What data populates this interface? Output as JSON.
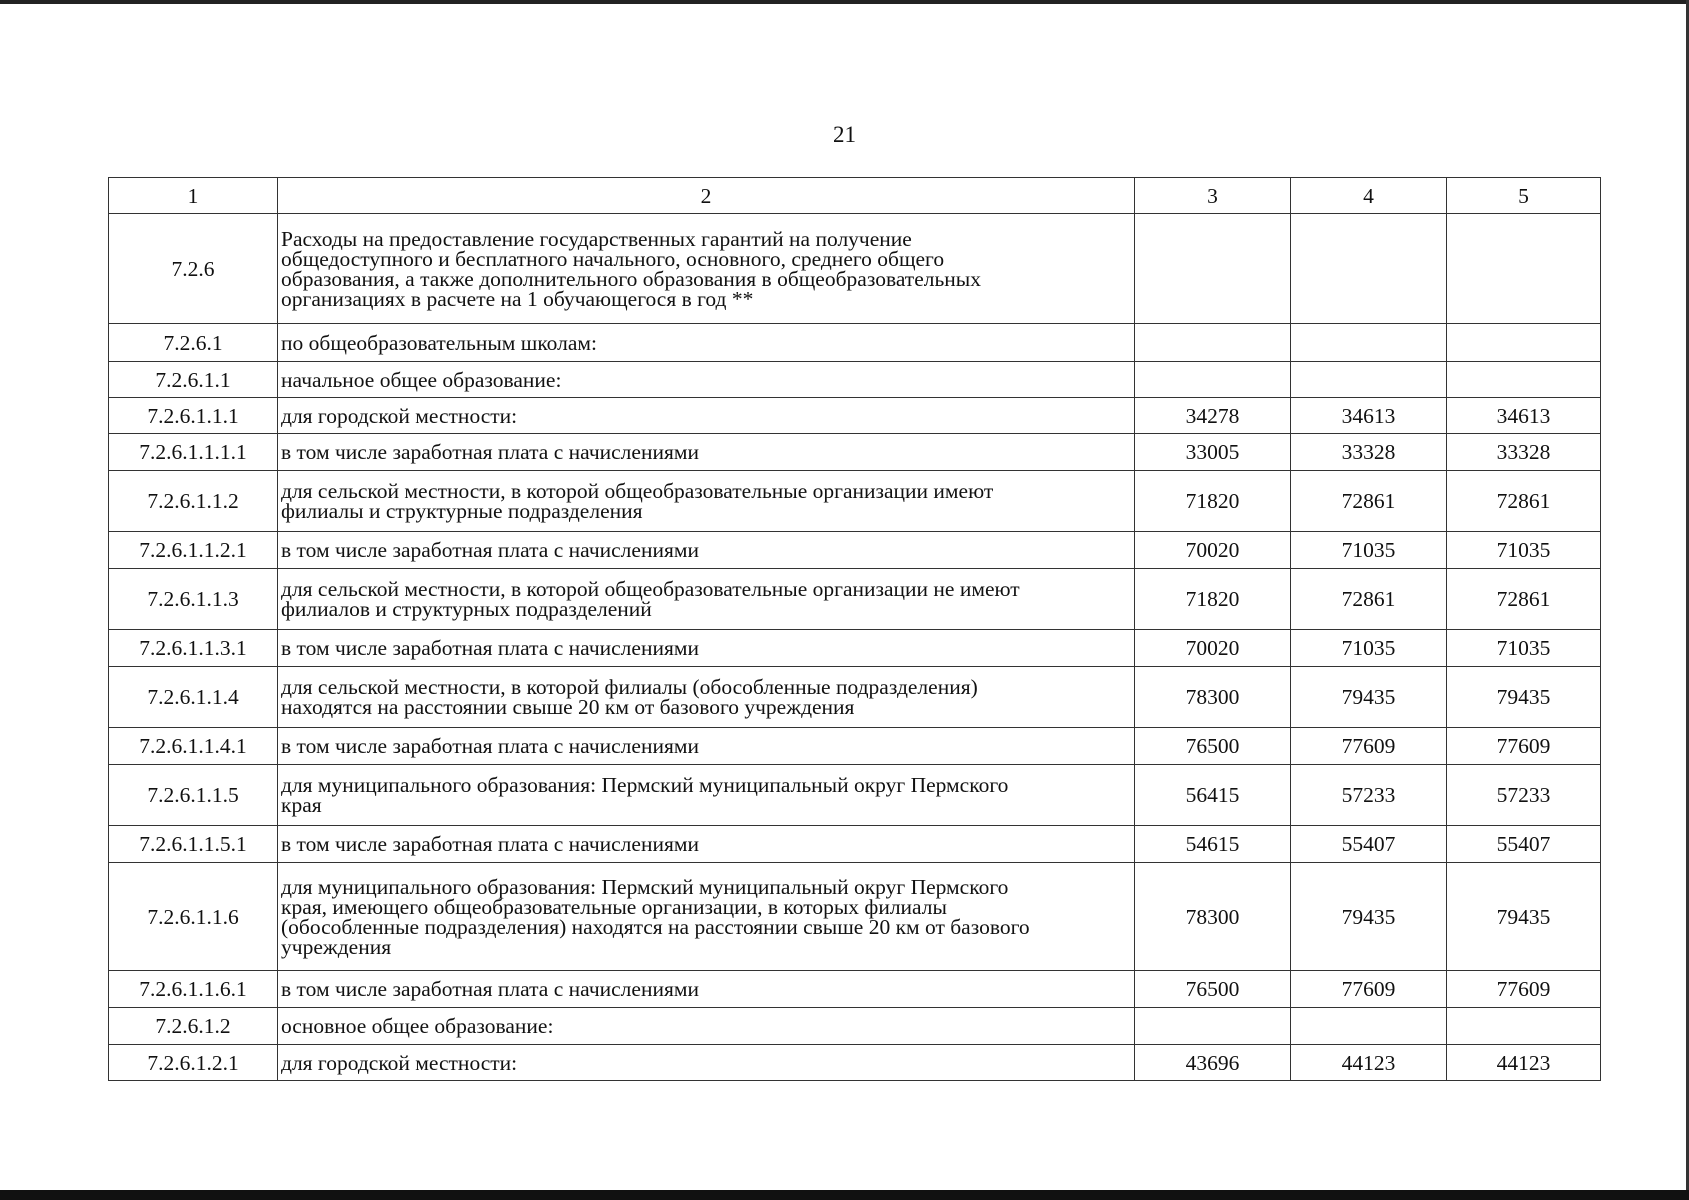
{
  "page_number": "21",
  "table": {
    "headers": [
      "1",
      "2",
      "3",
      "4",
      "5"
    ],
    "rows": [
      {
        "code": "7.2.6",
        "text": "Расходы на предоставление государственных гарантий на получение общедоступного и бесплатного начального, основного, среднего общего образования, а также дополнительного образования в общеобразовательных организациях в расчете на 1 обучающегося в год **",
        "c3": "",
        "c4": "",
        "c5": ""
      },
      {
        "code": "7.2.6.1",
        "text": "по общеобразовательным школам:",
        "c3": "",
        "c4": "",
        "c5": ""
      },
      {
        "code": "7.2.6.1.1",
        "text": "начальное общее образование:",
        "c3": "",
        "c4": "",
        "c5": ""
      },
      {
        "code": "7.2.6.1.1.1",
        "text": "для городской местности:",
        "c3": "34278",
        "c4": "34613",
        "c5": "34613"
      },
      {
        "code": "7.2.6.1.1.1.1",
        "text": "в том числе заработная плата с начислениями",
        "c3": "33005",
        "c4": "33328",
        "c5": "33328"
      },
      {
        "code": "7.2.6.1.1.2",
        "text": "для сельской местности, в которой общеобразовательные организации имеют филиалы и структурные подразделения",
        "c3": "71820",
        "c4": "72861",
        "c5": "72861"
      },
      {
        "code": "7.2.6.1.1.2.1",
        "text": "в том числе заработная плата с начислениями",
        "c3": "70020",
        "c4": "71035",
        "c5": "71035"
      },
      {
        "code": "7.2.6.1.1.3",
        "text": "для сельской местности, в которой общеобразовательные организации не имеют филиалов и структурных подразделений",
        "c3": "71820",
        "c4": "72861",
        "c5": "72861"
      },
      {
        "code": "7.2.6.1.1.3.1",
        "text": "в том числе заработная плата с начислениями",
        "c3": "70020",
        "c4": "71035",
        "c5": "71035"
      },
      {
        "code": "7.2.6.1.1.4",
        "text": "для сельской местности, в которой филиалы (обособленные подразделения) находятся на расстоянии свыше 20 км от базового учреждения",
        "c3": "78300",
        "c4": "79435",
        "c5": "79435"
      },
      {
        "code": "7.2.6.1.1.4.1",
        "text": "в том числе заработная плата с начислениями",
        "c3": "76500",
        "c4": "77609",
        "c5": "77609"
      },
      {
        "code": "7.2.6.1.1.5",
        "text": "для муниципального образования: Пермский муниципальный округ Пермского края",
        "c3": "56415",
        "c4": "57233",
        "c5": "57233"
      },
      {
        "code": "7.2.6.1.1.5.1",
        "text": "в том числе заработная плата с начислениями",
        "c3": "54615",
        "c4": "55407",
        "c5": "55407"
      },
      {
        "code": "7.2.6.1.1.6",
        "text": "для муниципального образования: Пермский муниципальный округ Пермского края, имеющего общеобразовательные организации, в которых филиалы (обособленные подразделения) находятся на расстоянии свыше 20 км от базового учреждения",
        "c3": "78300",
        "c4": "79435",
        "c5": "79435"
      },
      {
        "code": "7.2.6.1.1.6.1",
        "text": "в том числе заработная плата с начислениями",
        "c3": "76500",
        "c4": "77609",
        "c5": "77609"
      },
      {
        "code": "7.2.6.1.2",
        "text": "основное общее образование:",
        "c3": "",
        "c4": "",
        "c5": ""
      },
      {
        "code": "7.2.6.1.2.1",
        "text": "для городской местности:",
        "c3": "43696",
        "c4": "44123",
        "c5": "44123"
      }
    ]
  }
}
